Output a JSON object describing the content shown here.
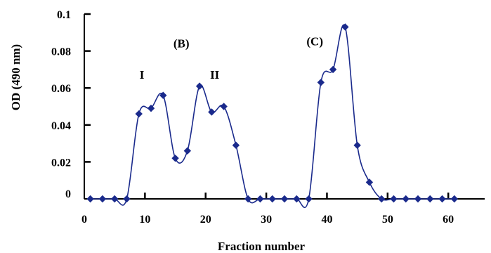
{
  "chart_data": {
    "type": "line",
    "title": "",
    "xlabel": "Fraction number",
    "ylabel": "OD (490 nm)",
    "xlim": [
      0,
      66
    ],
    "ylim": [
      0,
      0.1
    ],
    "x_ticks": [
      0,
      10,
      20,
      30,
      40,
      50,
      60
    ],
    "y_ticks": [
      {
        "value": 0,
        "label": "0"
      },
      {
        "value": 0.02,
        "label": "0.02"
      },
      {
        "value": 0.04,
        "label": "0.04"
      },
      {
        "value": 0.06,
        "label": "0.06"
      },
      {
        "value": 0.08,
        "label": "0.08"
      },
      {
        "value": 0.1,
        "label": "0.1"
      }
    ],
    "grid": false,
    "legend": "none",
    "colors": {
      "series": "#1a2a8c"
    },
    "series": [
      {
        "x": [
          1,
          3,
          5,
          7,
          9,
          11,
          13,
          15,
          17,
          19,
          21,
          23,
          25,
          27,
          29,
          31,
          33,
          35,
          37,
          39,
          41,
          43,
          45,
          47,
          49,
          51,
          53,
          55,
          57,
          59,
          61
        ],
        "y": [
          0,
          0,
          0,
          0,
          0.046,
          0.049,
          0.056,
          0.022,
          0.026,
          0.061,
          0.047,
          0.05,
          0.029,
          0,
          0,
          0,
          0,
          0,
          0,
          0.063,
          0.07,
          0.093,
          0.029,
          0.009,
          0,
          0,
          0,
          0,
          0,
          0,
          0
        ]
      }
    ],
    "annotations": [
      {
        "text": "(B)",
        "x": 16,
        "y": 0.082
      },
      {
        "text": "I",
        "x": 9.5,
        "y": 0.065
      },
      {
        "text": "II",
        "x": 21.5,
        "y": 0.065
      },
      {
        "text": "(C)",
        "x": 38,
        "y": 0.083
      }
    ]
  }
}
